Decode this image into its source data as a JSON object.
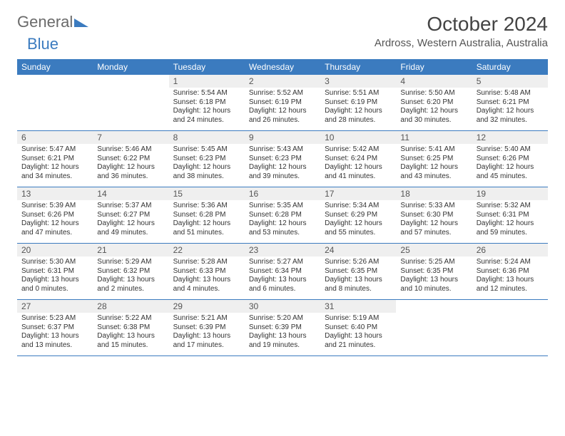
{
  "logo": {
    "text1": "General",
    "text2": "Blue"
  },
  "title": {
    "month": "October 2024",
    "location": "Ardross, Western Australia, Australia"
  },
  "colors": {
    "header_bg": "#3b7bbf",
    "header_fg": "#ffffff",
    "daynum_bg": "#efefef",
    "rule": "#3b7bbf"
  },
  "weekdays": [
    "Sunday",
    "Monday",
    "Tuesday",
    "Wednesday",
    "Thursday",
    "Friday",
    "Saturday"
  ],
  "weeks": [
    [
      {
        "n": "",
        "sr": "",
        "ss": "",
        "dl": ""
      },
      {
        "n": "",
        "sr": "",
        "ss": "",
        "dl": ""
      },
      {
        "n": "1",
        "sr": "Sunrise: 5:54 AM",
        "ss": "Sunset: 6:18 PM",
        "dl": "Daylight: 12 hours and 24 minutes."
      },
      {
        "n": "2",
        "sr": "Sunrise: 5:52 AM",
        "ss": "Sunset: 6:19 PM",
        "dl": "Daylight: 12 hours and 26 minutes."
      },
      {
        "n": "3",
        "sr": "Sunrise: 5:51 AM",
        "ss": "Sunset: 6:19 PM",
        "dl": "Daylight: 12 hours and 28 minutes."
      },
      {
        "n": "4",
        "sr": "Sunrise: 5:50 AM",
        "ss": "Sunset: 6:20 PM",
        "dl": "Daylight: 12 hours and 30 minutes."
      },
      {
        "n": "5",
        "sr": "Sunrise: 5:48 AM",
        "ss": "Sunset: 6:21 PM",
        "dl": "Daylight: 12 hours and 32 minutes."
      }
    ],
    [
      {
        "n": "6",
        "sr": "Sunrise: 5:47 AM",
        "ss": "Sunset: 6:21 PM",
        "dl": "Daylight: 12 hours and 34 minutes."
      },
      {
        "n": "7",
        "sr": "Sunrise: 5:46 AM",
        "ss": "Sunset: 6:22 PM",
        "dl": "Daylight: 12 hours and 36 minutes."
      },
      {
        "n": "8",
        "sr": "Sunrise: 5:45 AM",
        "ss": "Sunset: 6:23 PM",
        "dl": "Daylight: 12 hours and 38 minutes."
      },
      {
        "n": "9",
        "sr": "Sunrise: 5:43 AM",
        "ss": "Sunset: 6:23 PM",
        "dl": "Daylight: 12 hours and 39 minutes."
      },
      {
        "n": "10",
        "sr": "Sunrise: 5:42 AM",
        "ss": "Sunset: 6:24 PM",
        "dl": "Daylight: 12 hours and 41 minutes."
      },
      {
        "n": "11",
        "sr": "Sunrise: 5:41 AM",
        "ss": "Sunset: 6:25 PM",
        "dl": "Daylight: 12 hours and 43 minutes."
      },
      {
        "n": "12",
        "sr": "Sunrise: 5:40 AM",
        "ss": "Sunset: 6:26 PM",
        "dl": "Daylight: 12 hours and 45 minutes."
      }
    ],
    [
      {
        "n": "13",
        "sr": "Sunrise: 5:39 AM",
        "ss": "Sunset: 6:26 PM",
        "dl": "Daylight: 12 hours and 47 minutes."
      },
      {
        "n": "14",
        "sr": "Sunrise: 5:37 AM",
        "ss": "Sunset: 6:27 PM",
        "dl": "Daylight: 12 hours and 49 minutes."
      },
      {
        "n": "15",
        "sr": "Sunrise: 5:36 AM",
        "ss": "Sunset: 6:28 PM",
        "dl": "Daylight: 12 hours and 51 minutes."
      },
      {
        "n": "16",
        "sr": "Sunrise: 5:35 AM",
        "ss": "Sunset: 6:28 PM",
        "dl": "Daylight: 12 hours and 53 minutes."
      },
      {
        "n": "17",
        "sr": "Sunrise: 5:34 AM",
        "ss": "Sunset: 6:29 PM",
        "dl": "Daylight: 12 hours and 55 minutes."
      },
      {
        "n": "18",
        "sr": "Sunrise: 5:33 AM",
        "ss": "Sunset: 6:30 PM",
        "dl": "Daylight: 12 hours and 57 minutes."
      },
      {
        "n": "19",
        "sr": "Sunrise: 5:32 AM",
        "ss": "Sunset: 6:31 PM",
        "dl": "Daylight: 12 hours and 59 minutes."
      }
    ],
    [
      {
        "n": "20",
        "sr": "Sunrise: 5:30 AM",
        "ss": "Sunset: 6:31 PM",
        "dl": "Daylight: 13 hours and 0 minutes."
      },
      {
        "n": "21",
        "sr": "Sunrise: 5:29 AM",
        "ss": "Sunset: 6:32 PM",
        "dl": "Daylight: 13 hours and 2 minutes."
      },
      {
        "n": "22",
        "sr": "Sunrise: 5:28 AM",
        "ss": "Sunset: 6:33 PM",
        "dl": "Daylight: 13 hours and 4 minutes."
      },
      {
        "n": "23",
        "sr": "Sunrise: 5:27 AM",
        "ss": "Sunset: 6:34 PM",
        "dl": "Daylight: 13 hours and 6 minutes."
      },
      {
        "n": "24",
        "sr": "Sunrise: 5:26 AM",
        "ss": "Sunset: 6:35 PM",
        "dl": "Daylight: 13 hours and 8 minutes."
      },
      {
        "n": "25",
        "sr": "Sunrise: 5:25 AM",
        "ss": "Sunset: 6:35 PM",
        "dl": "Daylight: 13 hours and 10 minutes."
      },
      {
        "n": "26",
        "sr": "Sunrise: 5:24 AM",
        "ss": "Sunset: 6:36 PM",
        "dl": "Daylight: 13 hours and 12 minutes."
      }
    ],
    [
      {
        "n": "27",
        "sr": "Sunrise: 5:23 AM",
        "ss": "Sunset: 6:37 PM",
        "dl": "Daylight: 13 hours and 13 minutes."
      },
      {
        "n": "28",
        "sr": "Sunrise: 5:22 AM",
        "ss": "Sunset: 6:38 PM",
        "dl": "Daylight: 13 hours and 15 minutes."
      },
      {
        "n": "29",
        "sr": "Sunrise: 5:21 AM",
        "ss": "Sunset: 6:39 PM",
        "dl": "Daylight: 13 hours and 17 minutes."
      },
      {
        "n": "30",
        "sr": "Sunrise: 5:20 AM",
        "ss": "Sunset: 6:39 PM",
        "dl": "Daylight: 13 hours and 19 minutes."
      },
      {
        "n": "31",
        "sr": "Sunrise: 5:19 AM",
        "ss": "Sunset: 6:40 PM",
        "dl": "Daylight: 13 hours and 21 minutes."
      },
      {
        "n": "",
        "sr": "",
        "ss": "",
        "dl": ""
      },
      {
        "n": "",
        "sr": "",
        "ss": "",
        "dl": ""
      }
    ]
  ]
}
